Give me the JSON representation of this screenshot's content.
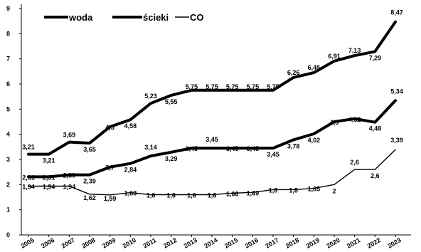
{
  "chart_data": {
    "type": "line",
    "x": [
      "2005",
      "2006",
      "2007",
      "2008",
      "2009",
      "2010",
      "2011",
      "2012",
      "2013",
      "2014",
      "2015",
      "2016",
      "2017",
      "2018",
      "2019",
      "2020",
      "2021",
      "2022",
      "2023"
    ],
    "ylim": [
      0,
      9
    ],
    "yticks": [
      "0",
      "1",
      "2",
      "3",
      "4",
      "5",
      "6",
      "7",
      "8",
      "9"
    ],
    "grid": false,
    "legend_position": "top-left",
    "series": [
      {
        "name": "woda",
        "values": [
          3.21,
          3.21,
          3.69,
          3.65,
          4.3,
          4.58,
          5.23,
          5.55,
          5.75,
          5.75,
          5.75,
          5.75,
          5.75,
          6.26,
          6.45,
          6.91,
          7.13,
          7.29,
          8.47
        ],
        "labels": [
          "3,21",
          "3,21",
          "3,69",
          "3,65",
          "4,3",
          "4,58",
          "5,23",
          "5,55",
          "5,75",
          "5,75",
          "5,75",
          "5,75",
          "5,75",
          "6,26",
          "6,45",
          "6,91",
          "7,13",
          "7,29",
          "8,47"
        ]
      },
      {
        "name": "ścieki",
        "values": [
          2.31,
          2.31,
          2.39,
          2.39,
          2.7,
          2.84,
          3.14,
          3.29,
          3.45,
          3.45,
          3.45,
          3.45,
          3.45,
          3.78,
          4.02,
          4.5,
          4.62,
          4.48,
          5.34
        ],
        "labels": [
          "2,31",
          "2,31",
          "2,39",
          "2,39",
          "2,7",
          "2,84",
          "3,14",
          "3,29",
          "3,45",
          "3,45",
          "3,45",
          "3,45",
          "3,45",
          "3,78",
          "4,02",
          "4,5",
          "4,62",
          "4,48",
          "5,34"
        ]
      },
      {
        "name": "CO",
        "values": [
          1.94,
          1.94,
          1.94,
          1.62,
          1.59,
          1.68,
          1.6,
          1.6,
          1.6,
          1.6,
          1.66,
          1.69,
          1.8,
          1.8,
          1.85,
          2,
          2.6,
          2.6,
          3.39
        ],
        "labels": [
          "1,94",
          "1,94",
          "1,94",
          "1,62",
          "1,59",
          "1,68",
          "1,6",
          "1,6",
          "1,6",
          "1,6",
          "1,66",
          "1,69",
          "1,8",
          "1,8",
          "1,85",
          "2",
          "2,6",
          "2,6",
          "3,39"
        ]
      }
    ]
  },
  "colors": {
    "line": "#000000",
    "background": "#ffffff"
  }
}
